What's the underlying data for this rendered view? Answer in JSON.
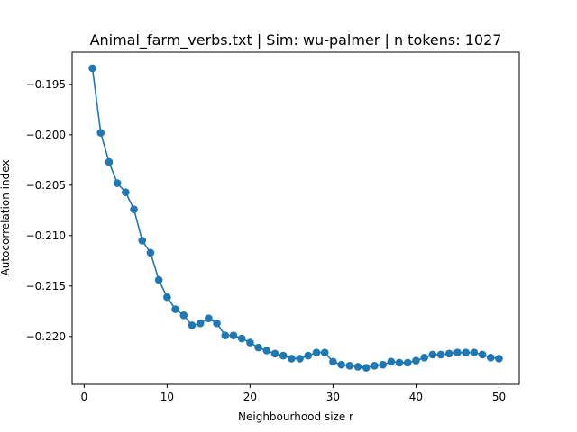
{
  "chart_data": {
    "type": "line",
    "title": "Animal_farm_verbs.txt | Sim: wu-palmer | n tokens: 1027",
    "xlabel": "Neighbourhood size r",
    "ylabel": "Autocorrelation index",
    "xlim": [
      -1.45,
      52.45
    ],
    "ylim": [
      -0.22475,
      -0.1918
    ],
    "x_ticks": [
      0,
      10,
      20,
      30,
      40,
      50
    ],
    "x_tick_labels": [
      "0",
      "10",
      "20",
      "30",
      "40",
      "50"
    ],
    "y_ticks": [
      -0.195,
      -0.2,
      -0.205,
      -0.21,
      -0.215,
      -0.22
    ],
    "y_tick_labels": [
      "−0.195",
      "−0.200",
      "−0.205",
      "−0.210",
      "−0.215",
      "−0.220"
    ],
    "grid": false,
    "series": [
      {
        "color": "#1f77b4",
        "marker": "circle",
        "x": [
          1,
          2,
          3,
          4,
          5,
          6,
          7,
          8,
          9,
          10,
          11,
          12,
          13,
          14,
          15,
          16,
          17,
          18,
          19,
          20,
          21,
          22,
          23,
          24,
          25,
          26,
          27,
          28,
          29,
          30,
          31,
          32,
          33,
          34,
          35,
          36,
          37,
          38,
          39,
          40,
          41,
          42,
          43,
          44,
          45,
          46,
          47,
          48,
          49,
          50
        ],
        "y": [
          -0.1934,
          -0.1998,
          -0.2027,
          -0.2048,
          -0.2057,
          -0.2074,
          -0.2105,
          -0.2117,
          -0.2144,
          -0.2161,
          -0.2173,
          -0.2179,
          -0.2189,
          -0.2187,
          -0.2182,
          -0.2187,
          -0.2199,
          -0.2199,
          -0.2202,
          -0.2206,
          -0.2211,
          -0.2214,
          -0.2217,
          -0.2219,
          -0.2222,
          -0.2222,
          -0.2219,
          -0.2216,
          -0.2216,
          -0.2225,
          -0.2228,
          -0.2229,
          -0.223,
          -0.2231,
          -0.2229,
          -0.2228,
          -0.2225,
          -0.2226,
          -0.2226,
          -0.2224,
          -0.2221,
          -0.2218,
          -0.2218,
          -0.2217,
          -0.2216,
          -0.2216,
          -0.2216,
          -0.2218,
          -0.2221,
          -0.2222
        ]
      }
    ]
  }
}
